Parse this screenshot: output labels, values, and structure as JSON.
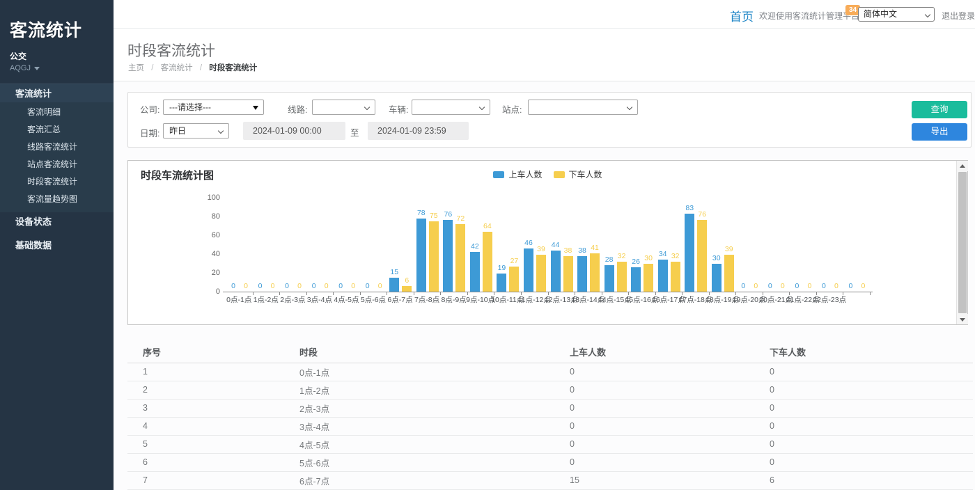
{
  "sidebar": {
    "title": "客流统计",
    "org": "公交",
    "org_code": "AQGJ",
    "menu": [
      {
        "label": "客流统计",
        "active": true,
        "children": [
          "客流明细",
          "客流汇总",
          "线路客流统计",
          "站点客流统计",
          "时段客流统计",
          "客流量趋势图"
        ]
      },
      {
        "label": "设备状态",
        "active": false,
        "children": []
      },
      {
        "label": "基础数据",
        "active": false,
        "children": []
      }
    ]
  },
  "topbar": {
    "home": "首页",
    "welcome": "欢迎使用客流统计管理平台",
    "badge": "34",
    "language": "简体中文",
    "logout": "退出登录"
  },
  "page": {
    "title": "时段客流统计",
    "breadcrumb": [
      "主页",
      "客流统计",
      "时段客流统计"
    ],
    "separator": "/"
  },
  "filters": {
    "company_label": "公司:",
    "company_value": "---请选择---",
    "line_label": "线路:",
    "line_value": "",
    "vehicle_label": "车辆:",
    "vehicle_value": "",
    "station_label": "站点:",
    "station_value": "",
    "date_label": "日期:",
    "date_range_value": "昨日",
    "date_from": "2024-01-09 00:00",
    "to_label": "至",
    "date_to": "2024-01-09 23:59",
    "query_button": "查询",
    "export_button": "导出"
  },
  "chart_data": {
    "type": "bar",
    "title": "时段车流统计图",
    "categories": [
      "0点-1点",
      "1点-2点",
      "2点-3点",
      "3点-4点",
      "4点-5点",
      "5点-6点",
      "6点-7点",
      "7点-8点",
      "8点-9点",
      "9点-10点",
      "10点-11点",
      "11点-12点",
      "12点-13点",
      "13点-14点",
      "14点-15点",
      "15点-16点",
      "16点-17点",
      "17点-18点",
      "18点-19点",
      "19点-20点",
      "20点-21点",
      "21点-22点",
      "22点-23点",
      ""
    ],
    "series": [
      {
        "name": "上车人数",
        "color": "#3d9ad6",
        "values": [
          0,
          0,
          0,
          0,
          0,
          0,
          15,
          78,
          76,
          42,
          19,
          46,
          44,
          38,
          28,
          26,
          34,
          83,
          30,
          0,
          0,
          0,
          0,
          0
        ]
      },
      {
        "name": "下车人数",
        "color": "#f6ce4d",
        "values": [
          0,
          0,
          0,
          0,
          0,
          0,
          6,
          75,
          72,
          64,
          27,
          39,
          38,
          41,
          32,
          30,
          32,
          76,
          39,
          0,
          0,
          0,
          0,
          0
        ]
      }
    ],
    "ylim": [
      0,
      100
    ],
    "yticks": [
      0,
      20,
      40,
      60,
      80,
      100
    ],
    "legend_position": "top-center",
    "grid": false
  },
  "table": {
    "headers": [
      "序号",
      "时段",
      "上车人数",
      "下车人数"
    ],
    "rows": [
      [
        "1",
        "0点-1点",
        "0",
        "0"
      ],
      [
        "2",
        "1点-2点",
        "0",
        "0"
      ],
      [
        "3",
        "2点-3点",
        "0",
        "0"
      ],
      [
        "4",
        "3点-4点",
        "0",
        "0"
      ],
      [
        "5",
        "4点-5点",
        "0",
        "0"
      ],
      [
        "6",
        "5点-6点",
        "0",
        "0"
      ],
      [
        "7",
        "6点-7点",
        "15",
        "6"
      ]
    ]
  },
  "colors": {
    "sidebar_bg": "#253444",
    "accent_green": "#1abc9c",
    "accent_blue": "#2e86de",
    "bar_blue": "#3d9ad6",
    "bar_yellow": "#f6ce4d",
    "badge_orange": "#f8ac59",
    "link_blue": "#1c84c6"
  }
}
